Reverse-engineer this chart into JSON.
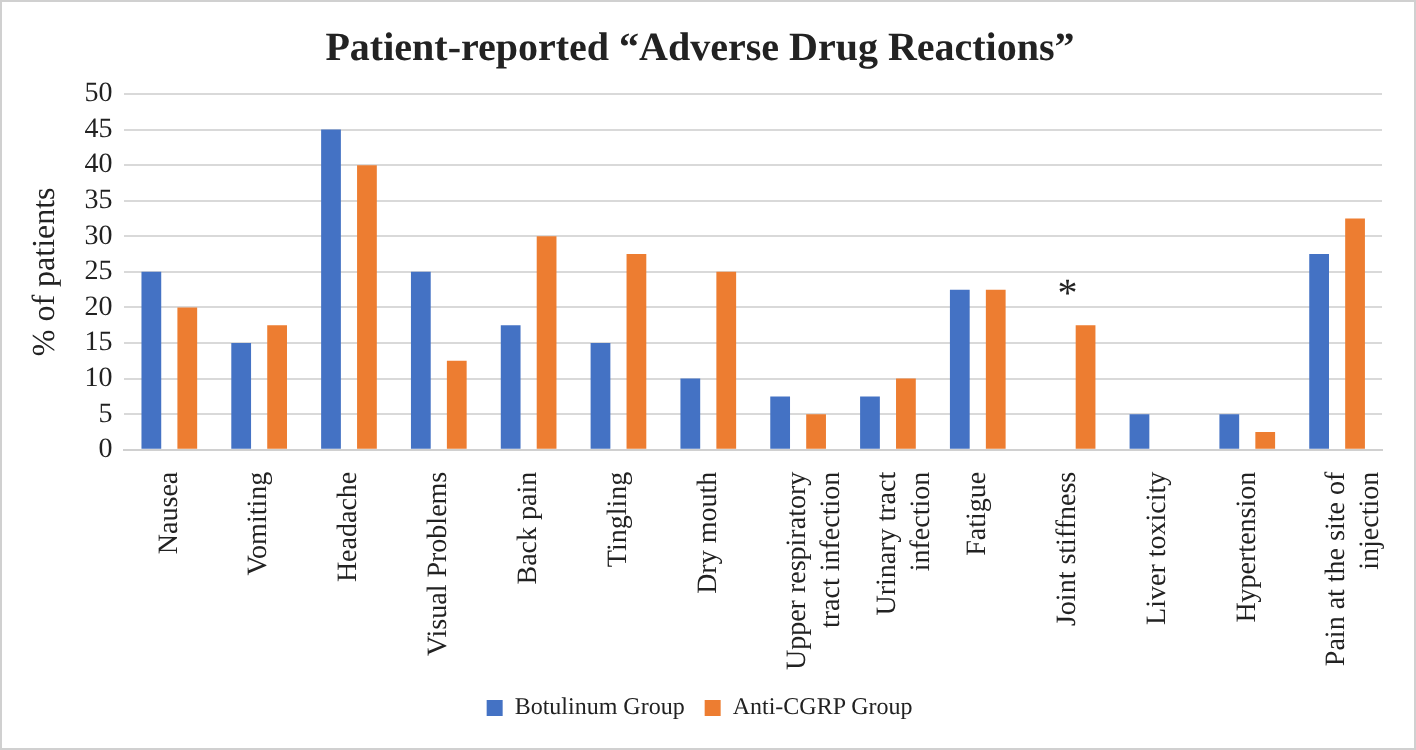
{
  "chart_data": {
    "type": "bar",
    "title": "Patient-reported “Adverse Drug Reactions”",
    "ylabel": "% of patients",
    "categories": [
      "Nausea",
      "Vomiting",
      "Headache",
      "Visual Problems",
      "Back pain",
      "Tingling",
      "Dry mouth",
      "Upper respiratory tract infection",
      "Urinary tract infection",
      "Fatigue",
      "Joint stiffness",
      "Liver toxicity",
      "Hypertension",
      "Pain at the site of injection"
    ],
    "series": [
      {
        "name": "Botulinum Group",
        "color": "#4472c4",
        "values": [
          25,
          15,
          45,
          25,
          17.5,
          15,
          10,
          7.5,
          7.5,
          22.5,
          0,
          5,
          5,
          27.5
        ]
      },
      {
        "name": "Anti-CGRP Group",
        "color": "#ed7d31",
        "values": [
          20,
          17.5,
          40,
          12.5,
          30,
          27.5,
          25,
          5,
          10,
          22.5,
          17.5,
          0,
          2.5,
          32.5
        ]
      }
    ],
    "ylim": [
      0,
      50
    ],
    "yticks": [
      0,
      5,
      10,
      15,
      20,
      25,
      30,
      35,
      40,
      45,
      50
    ],
    "grid": "y",
    "legend": "bottom",
    "annotations": [
      {
        "text": "*",
        "x": "Joint stiffness",
        "y": 17.5
      }
    ]
  }
}
